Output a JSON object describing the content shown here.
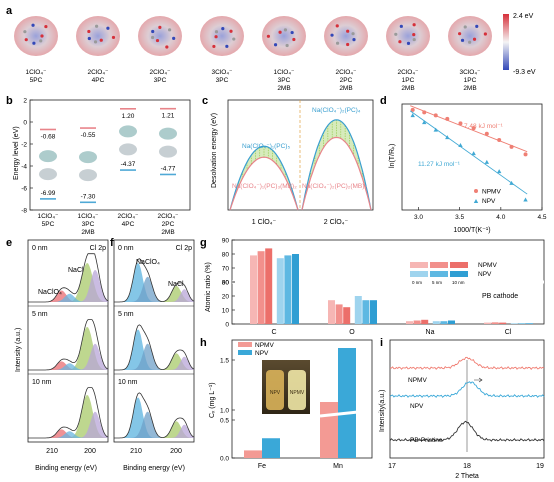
{
  "panel_letters": [
    "a",
    "b",
    "c",
    "d",
    "e",
    "f",
    "g",
    "h",
    "i"
  ],
  "panel_a": {
    "molecules": [
      {
        "l1": "1ClO₄⁻",
        "l2": "5PC",
        "l3": ""
      },
      {
        "l1": "2ClO₄⁻",
        "l2": "4PC",
        "l3": ""
      },
      {
        "l1": "2ClO₄⁻",
        "l2": "3PC",
        "l3": ""
      },
      {
        "l1": "3ClO₄⁻",
        "l2": "3PC",
        "l3": ""
      },
      {
        "l1": "1ClO₄⁻",
        "l2": "3PC",
        "l3": "2MB"
      },
      {
        "l1": "2ClO₄⁻",
        "l2": "2PC",
        "l3": "2MB"
      },
      {
        "l1": "2ClO₄⁻",
        "l2": "1PC",
        "l3": "2MB"
      },
      {
        "l1": "3ClO₄⁻",
        "l2": "1PC",
        "l3": "2MB"
      }
    ],
    "scale_max": "2.4 eV",
    "scale_min": "-9.3 eV",
    "colors": {
      "positive": "#d6303a",
      "negative": "#3348b8"
    }
  },
  "chart_data": [
    {
      "panel": "b",
      "type": "energy-levels",
      "ylabel": "Energy level (eV)",
      "ylim": [
        -8,
        2
      ],
      "yticks": [
        "-8",
        "-6",
        "-4",
        "-2",
        "0",
        "2"
      ],
      "categories": [
        {
          "l1": "1ClO₄⁻",
          "l2": "5PC",
          "lumo": -0.68,
          "homo": -6.99,
          "lumo_label": "-0.68",
          "homo_label": "-6.99"
        },
        {
          "l1": "1ClO₄⁻",
          "l2": "3PC",
          "l3": "2MB",
          "lumo": -0.55,
          "homo": -7.3,
          "lumo_label": "-0.55",
          "homo_label": "-7.30"
        },
        {
          "l1": "2ClO₄⁻",
          "l2": "4PC",
          "lumo": 1.2,
          "homo": -4.37,
          "lumo_label": "1.20",
          "homo_label": "-4.37"
        },
        {
          "l1": "2ClO₄⁻",
          "l2": "2PC",
          "l3": "2MB",
          "lumo": 1.21,
          "homo": -4.77,
          "lumo_label": "1.21",
          "homo_label": "-4.77"
        }
      ],
      "colors": {
        "lumo": "#e8848a",
        "homo": "#4fa9d6"
      }
    },
    {
      "panel": "c",
      "type": "energy-profile",
      "ylabel": "Desolvation energy (eV)",
      "categories": [
        "1 ClO₄⁻",
        "2 ClO₄⁻"
      ],
      "curves": [
        {
          "name": "Na(ClO₄⁻)₁(PC)₅",
          "peak_rel": 0.58
        },
        {
          "name": "Na(ClO₄⁻)₁(PC)₃(MB)₂",
          "peak_rel": 0.48
        },
        {
          "name": "Na(ClO₄⁻)₂(PC)₄",
          "peak_rel": 0.82
        },
        {
          "name": "Na(ClO₄⁻)₂(PC)₂(MB)₂",
          "peak_rel": 0.66
        }
      ],
      "colors": {
        "upper": "#3a9fd0",
        "lower": "#e8848a",
        "fill": "#8cc63f"
      }
    },
    {
      "panel": "d",
      "type": "scatter",
      "xlabel": "1000/T(K⁻¹)",
      "ylabel": "ln(T/Rₖ)",
      "xlim": [
        2.8,
        4.5
      ],
      "ylim": [
        -8.5,
        0.6
      ],
      "xticks": [
        3.0,
        3.5,
        4.0,
        4.5
      ],
      "xtick_labels": [
        "3.0",
        "3.5",
        "4.0",
        "4.5"
      ],
      "series": [
        {
          "name": "NPMV",
          "annotation": "7.48 kJ mol⁻¹",
          "x": [
            2.93,
            3.07,
            3.21,
            3.35,
            3.51,
            3.67,
            3.83,
            3.98,
            4.13,
            4.3
          ],
          "y": [
            0.1,
            -0.12,
            -0.38,
            -0.68,
            -1.06,
            -1.47,
            -1.95,
            -2.49,
            -3.08,
            -3.72
          ]
        },
        {
          "name": "NPV",
          "annotation": "11.27 kJ mol⁻¹",
          "x": [
            2.93,
            3.07,
            3.21,
            3.35,
            3.51,
            3.67,
            3.83,
            3.98,
            4.13,
            4.3
          ],
          "y": [
            -0.35,
            -0.96,
            -1.6,
            -2.24,
            -2.92,
            -3.62,
            -4.37,
            -5.16,
            -6.17,
            -7.6
          ]
        }
      ],
      "colors": {
        "NPMV": "#ef7f74",
        "NPV": "#41a9d4"
      }
    },
    {
      "panel": "e",
      "type": "xps",
      "title": "Cl 2p",
      "xlabel": "Binding energy (eV)",
      "ylabel": "Intensity (a.u.)",
      "xticks": [
        "210",
        "200"
      ],
      "depths": [
        "0 nm",
        "5 nm",
        "10 nm"
      ],
      "peak_labels": [
        "NaCl",
        "NaClO₄"
      ]
    },
    {
      "panel": "f",
      "type": "xps",
      "title": "Cl 2p",
      "xlabel": "Binding energy (eV)",
      "xticks": [
        "210",
        "200"
      ],
      "depths": [
        "0 nm",
        "5 nm",
        "10 nm"
      ],
      "peak_labels": [
        "NaClO₄",
        "NaCl"
      ]
    },
    {
      "panel": "g",
      "type": "bar",
      "ylabel": "Atomic ratio (%)",
      "yticks": [
        "0",
        "10",
        "20",
        "30",
        "60",
        "70",
        "80",
        "90"
      ],
      "categories": [
        "C",
        "O",
        "Na",
        "Cl"
      ],
      "series": [
        {
          "name": "NPMV 0 nm",
          "values": [
            79,
            17,
            2,
            1.0
          ]
        },
        {
          "name": "NPMV 5 nm",
          "values": [
            82,
            14,
            2.5,
            1.2
          ]
        },
        {
          "name": "NPMV 10 nm",
          "values": [
            84,
            12,
            3,
            1.0
          ]
        },
        {
          "name": "NPV 0 nm",
          "values": [
            77,
            20,
            2,
            0.5
          ]
        },
        {
          "name": "NPV 5 nm",
          "values": [
            79,
            17,
            2,
            0.5
          ]
        },
        {
          "name": "NPV 10 nm",
          "values": [
            80,
            17,
            2.5,
            0.5
          ]
        }
      ],
      "legend": {
        "rows": [
          "NPMV",
          "NPV"
        ],
        "depths": [
          "0 nm",
          "5 nm",
          "10 nm"
        ],
        "note": "PB cathode"
      },
      "colors": [
        "#f6b6b4",
        "#f2908c",
        "#ec6f6a",
        "#9fd4ee",
        "#5eb8e2",
        "#2f9ed3"
      ]
    },
    {
      "panel": "h",
      "type": "bar",
      "ylabel": "Cₓ (mg L⁻¹)",
      "yticks": [
        "0.0",
        "0.5",
        "1.0",
        "1.5"
      ],
      "categories": [
        "Fe",
        "Mn"
      ],
      "series": [
        {
          "name": "NPMV",
          "values": [
            0.1,
            1.08
          ]
        },
        {
          "name": "NPV",
          "values": [
            0.26,
            1.62
          ]
        }
      ],
      "colors": {
        "NPMV": "#f39a94",
        "NPV": "#3aa8d8"
      },
      "photo_labels": [
        "NPV",
        "NPMV"
      ]
    },
    {
      "panel": "i",
      "type": "xrd",
      "xlabel": "2 Theta",
      "ylabel": "Intensity(a.u.)",
      "xlim": [
        17,
        19
      ],
      "xticks": [
        "17",
        "18",
        "19"
      ],
      "series": [
        {
          "name": "NPMV",
          "color": "#f07d72"
        },
        {
          "name": "NPV",
          "color": "#3aa8d8"
        },
        {
          "name": "PB-Pristine",
          "color": "#333333"
        }
      ]
    }
  ]
}
